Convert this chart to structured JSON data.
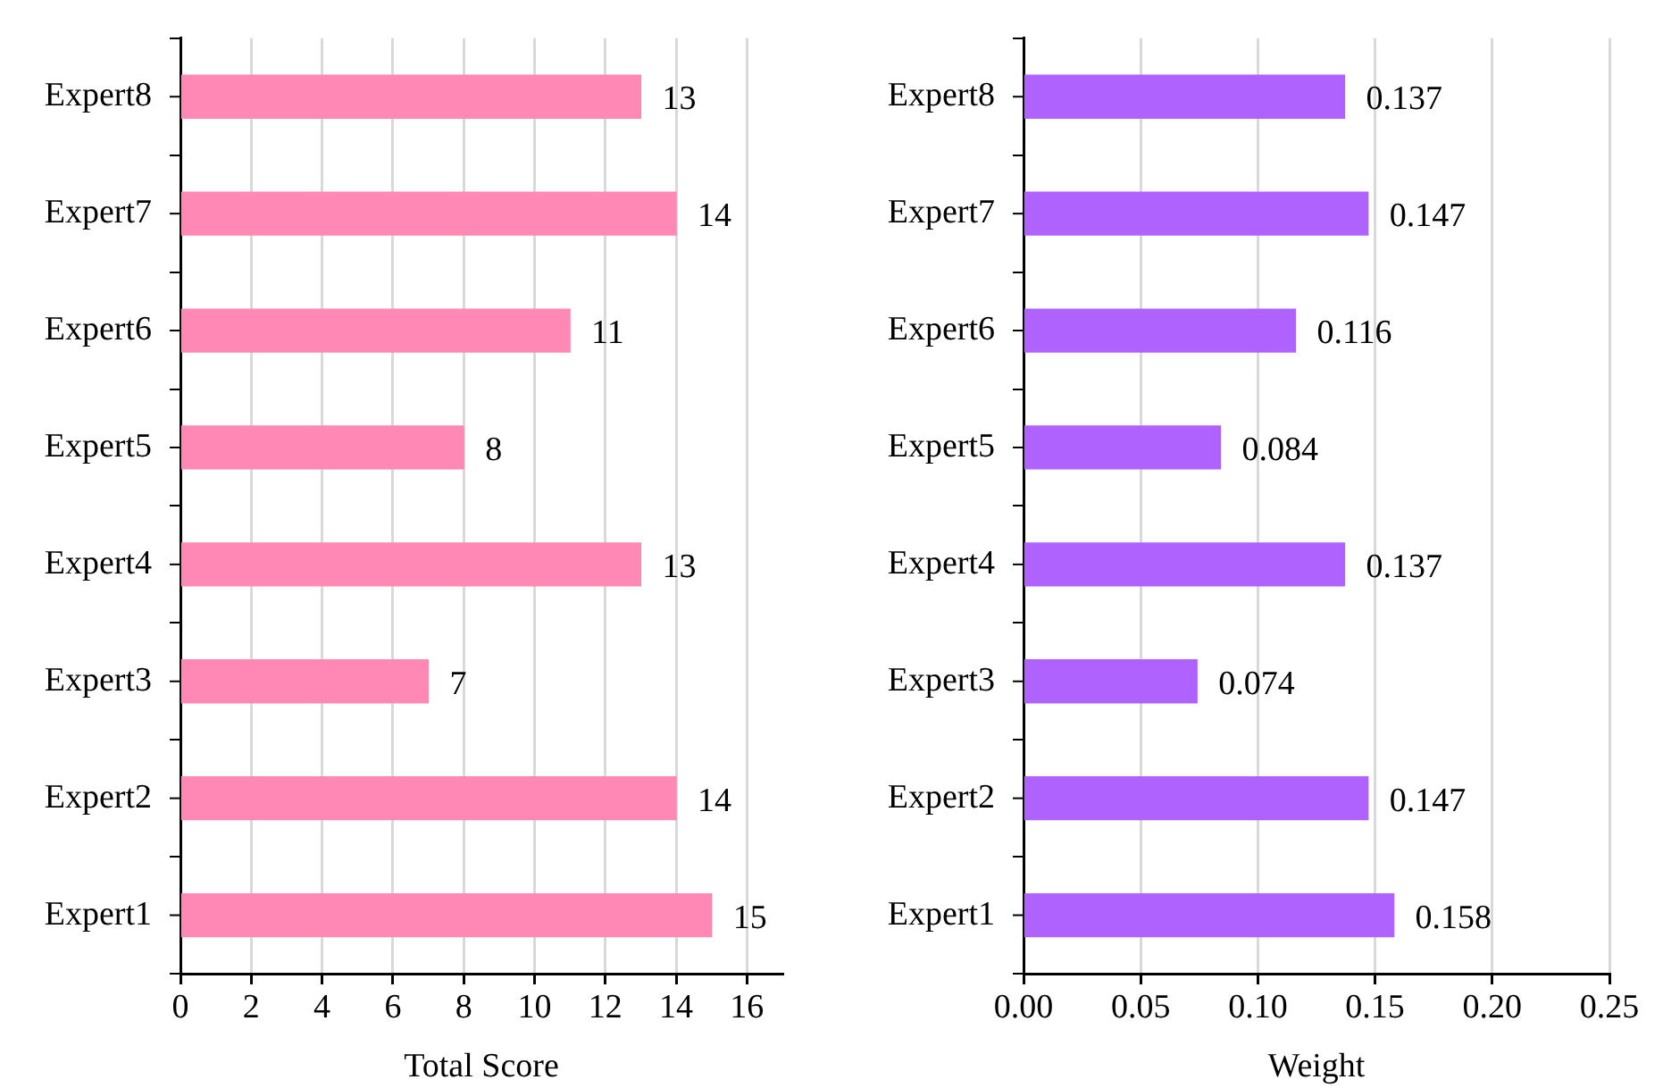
{
  "chart_data": [
    {
      "type": "bar",
      "orientation": "horizontal",
      "xlabel": "Total Score",
      "categories": [
        "Expert8",
        "Expert7",
        "Expert6",
        "Expert5",
        "Expert4",
        "Expert3",
        "Expert2",
        "Expert1"
      ],
      "series": [
        {
          "color": "#ff88b4",
          "values": [
            13,
            14,
            11,
            8,
            13,
            7,
            14,
            15
          ]
        }
      ],
      "xlim": [
        0,
        17
      ],
      "xticks": [
        0,
        2,
        4,
        6,
        8,
        10,
        12,
        14,
        16
      ],
      "grid": "x",
      "data_labels": true,
      "legend": false
    },
    {
      "type": "bar",
      "orientation": "horizontal",
      "xlabel": "Weight",
      "categories": [
        "Expert8",
        "Expert7",
        "Expert6",
        "Expert5",
        "Expert4",
        "Expert3",
        "Expert2",
        "Expert1"
      ],
      "series": [
        {
          "color": "#b062ff",
          "values": [
            0.137,
            0.147,
            0.116,
            0.084,
            0.137,
            0.074,
            0.147,
            0.158
          ]
        }
      ],
      "xlim": [
        0,
        0.25
      ],
      "xticks": [
        {
          "value": 0,
          "label": "0.00"
        },
        {
          "value": 0.05,
          "label": "0.05"
        },
        {
          "value": 0.1,
          "label": "0.10"
        },
        {
          "value": 0.15,
          "label": "0.15"
        },
        {
          "value": 0.2,
          "label": "0.20"
        },
        {
          "value": 0.25,
          "label": "0.25"
        }
      ],
      "grid": "x",
      "data_labels": true,
      "legend": false
    }
  ]
}
